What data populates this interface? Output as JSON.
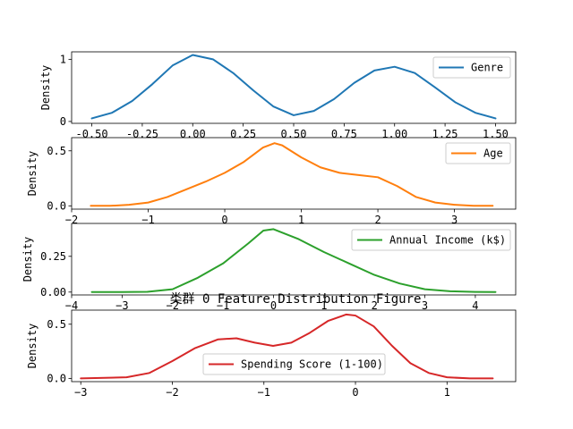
{
  "chart_data": [
    {
      "type": "line",
      "title": "",
      "xlabel": "",
      "ylabel": "Density",
      "xlim": [
        -0.6,
        1.6
      ],
      "ylim": [
        -0.03,
        1.12
      ],
      "xticks": [
        -0.5,
        -0.25,
        0.0,
        0.25,
        0.5,
        0.75,
        1.0,
        1.25,
        1.5
      ],
      "xtick_labels": [
        "-0.50",
        "-0.25",
        "0.00",
        "0.25",
        "0.50",
        "0.75",
        "1.00",
        "1.25",
        "1.50"
      ],
      "yticks": [
        0,
        1
      ],
      "ytick_labels": [
        "0",
        "1"
      ],
      "legend_position": "upper-right",
      "series": [
        {
          "name": "Genre",
          "color": "#1f77b4",
          "x": [
            -0.5,
            -0.4,
            -0.3,
            -0.2,
            -0.1,
            0.0,
            0.1,
            0.2,
            0.3,
            0.4,
            0.5,
            0.6,
            0.7,
            0.8,
            0.9,
            1.0,
            1.1,
            1.2,
            1.3,
            1.4,
            1.5
          ],
          "y": [
            0.05,
            0.14,
            0.33,
            0.6,
            0.9,
            1.07,
            1.0,
            0.78,
            0.5,
            0.24,
            0.1,
            0.17,
            0.36,
            0.62,
            0.82,
            0.88,
            0.78,
            0.55,
            0.31,
            0.14,
            0.05
          ]
        }
      ]
    },
    {
      "type": "line",
      "title": "",
      "xlabel": "",
      "ylabel": "Density",
      "xlim": [
        -2.0,
        3.8
      ],
      "ylim": [
        -0.03,
        0.62
      ],
      "xticks": [
        -2,
        -1,
        0,
        1,
        2,
        3
      ],
      "xtick_labels": [
        "−2",
        "−1",
        "0",
        "1",
        "2",
        "3"
      ],
      "yticks": [
        0.0,
        0.5
      ],
      "ytick_labels": [
        "0.0",
        "0.5"
      ],
      "legend_position": "upper-right",
      "series": [
        {
          "name": "Age",
          "color": "#ff7f0e",
          "x": [
            -1.75,
            -1.5,
            -1.25,
            -1.0,
            -0.75,
            -0.5,
            -0.25,
            0.0,
            0.25,
            0.5,
            0.65,
            0.75,
            1.0,
            1.25,
            1.5,
            1.75,
            2.0,
            2.25,
            2.5,
            2.75,
            3.0,
            3.25,
            3.5
          ],
          "y": [
            0.0,
            0.0,
            0.01,
            0.03,
            0.08,
            0.15,
            0.22,
            0.3,
            0.4,
            0.53,
            0.57,
            0.55,
            0.44,
            0.35,
            0.3,
            0.28,
            0.26,
            0.18,
            0.08,
            0.03,
            0.01,
            0.0,
            0.0
          ]
        }
      ]
    },
    {
      "type": "line",
      "title": "",
      "xlabel": "",
      "ylabel": "Density",
      "xlim": [
        -4.0,
        4.8
      ],
      "ylim": [
        -0.02,
        0.48
      ],
      "xticks": [
        -4,
        -3,
        -2,
        -1,
        0,
        1,
        2,
        3,
        4
      ],
      "xtick_labels": [
        "−4",
        "−3",
        "−2",
        "−1",
        "0",
        "1",
        "2",
        "3",
        "4"
      ],
      "yticks": [
        0.0,
        0.25
      ],
      "ytick_labels": [
        "0.00",
        "0.25"
      ],
      "legend_position": "upper-right",
      "series": [
        {
          "name": "Annual Income (k$)",
          "color": "#2ca02c",
          "x": [
            -3.6,
            -3.0,
            -2.5,
            -2.0,
            -1.5,
            -1.0,
            -0.5,
            -0.2,
            0.0,
            0.5,
            1.0,
            1.5,
            2.0,
            2.5,
            3.0,
            3.5,
            4.0,
            4.4
          ],
          "y": [
            0.0,
            0.0,
            0.002,
            0.02,
            0.1,
            0.2,
            0.34,
            0.43,
            0.44,
            0.37,
            0.28,
            0.2,
            0.12,
            0.06,
            0.02,
            0.006,
            0.001,
            0.0
          ]
        }
      ]
    },
    {
      "type": "line",
      "title": "类群 0 Feature Distribution Figure",
      "xlabel": "",
      "ylabel": "Density",
      "xlim": [
        -3.1,
        1.75
      ],
      "ylim": [
        -0.03,
        0.63
      ],
      "xticks": [
        -3,
        -2,
        -1,
        0,
        1
      ],
      "xtick_labels": [
        "−3",
        "−2",
        "−1",
        "0",
        "1"
      ],
      "yticks": [
        0.0,
        0.5
      ],
      "ytick_labels": [
        "0.0",
        "0.5"
      ],
      "legend_position": "lower-center",
      "series": [
        {
          "name": "Spending Score (1-100)",
          "color": "#d62728",
          "x": [
            -3.0,
            -2.5,
            -2.25,
            -2.0,
            -1.75,
            -1.5,
            -1.3,
            -1.1,
            -0.9,
            -0.7,
            -0.5,
            -0.3,
            -0.1,
            0.0,
            0.2,
            0.4,
            0.6,
            0.8,
            1.0,
            1.25,
            1.5
          ],
          "y": [
            0.0,
            0.01,
            0.05,
            0.16,
            0.28,
            0.36,
            0.37,
            0.33,
            0.3,
            0.33,
            0.42,
            0.53,
            0.59,
            0.58,
            0.48,
            0.3,
            0.14,
            0.05,
            0.01,
            0.0,
            0.0
          ]
        }
      ]
    }
  ]
}
